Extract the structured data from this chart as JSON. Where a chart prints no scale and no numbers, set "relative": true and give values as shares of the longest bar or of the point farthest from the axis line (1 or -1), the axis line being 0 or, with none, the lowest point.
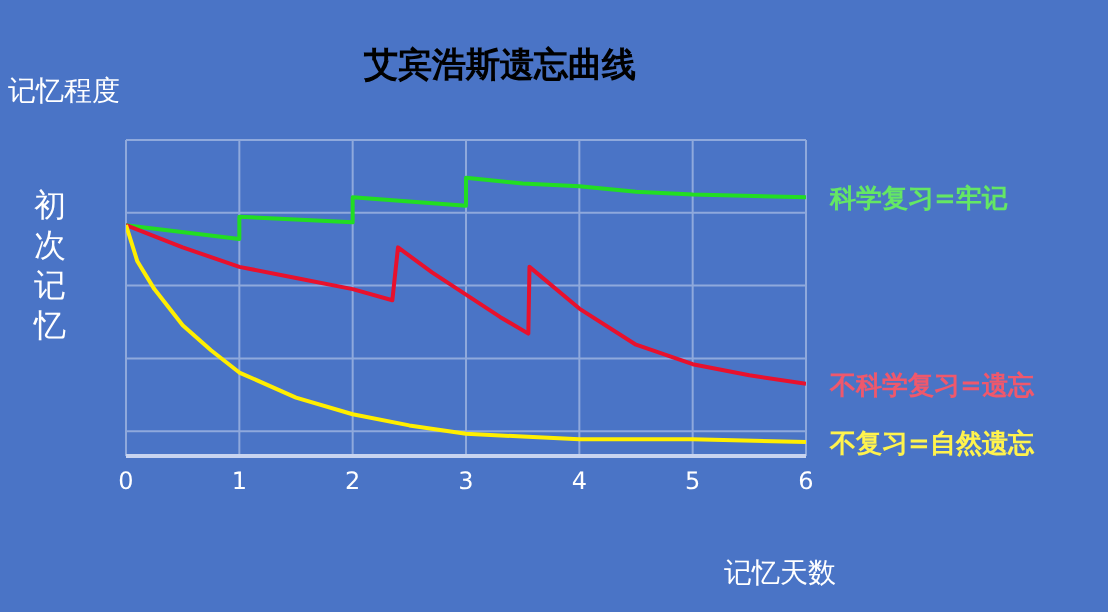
{
  "chart_data": {
    "type": "line",
    "title": "艾宾浩斯遗忘曲线",
    "xlabel": "记忆天数",
    "ylabel": "记忆程度",
    "annotations": [
      "初次记忆"
    ],
    "relative": true,
    "xlim": [
      0,
      6
    ],
    "xticks": [
      0,
      1,
      2,
      3,
      4,
      5,
      6
    ],
    "grid": true,
    "marker": "none",
    "line_style": "solid",
    "series": [
      {
        "name": "科学复习=牢记",
        "color": "#22dd22",
        "x": [
          0,
          1,
          1,
          2,
          2,
          3,
          3,
          3.5,
          4,
          4.5,
          5,
          6
        ],
        "values": [
          0.83,
          0.78,
          0.86,
          0.84,
          0.93,
          0.9,
          1,
          0.98,
          0.97,
          0.95,
          0.94,
          0.93
        ]
      },
      {
        "name": "不科学复习=遗忘",
        "color": "#e8112d",
        "x": [
          0,
          0.5,
          1,
          1.5,
          2,
          2.35,
          2.4,
          2.7,
          3,
          3.3,
          3.55,
          3.56,
          4,
          4.5,
          5,
          5.5,
          6
        ],
        "values": [
          0.83,
          0.75,
          0.68,
          0.64,
          0.6,
          0.56,
          0.75,
          0.66,
          0.58,
          0.5,
          0.44,
          0.68,
          0.53,
          0.4,
          0.33,
          0.29,
          0.26
        ]
      },
      {
        "name": "不复习=自然遗忘",
        "color": "#ffee00",
        "x": [
          0,
          0.1,
          0.25,
          0.5,
          0.75,
          1,
          1.5,
          2,
          2.5,
          3,
          3.5,
          4,
          5,
          6
        ],
        "values": [
          0.83,
          0.7,
          0.6,
          0.47,
          0.38,
          0.3,
          0.21,
          0.15,
          0.11,
          0.08,
          0.07,
          0.06,
          0.06,
          0.05
        ]
      }
    ]
  }
}
